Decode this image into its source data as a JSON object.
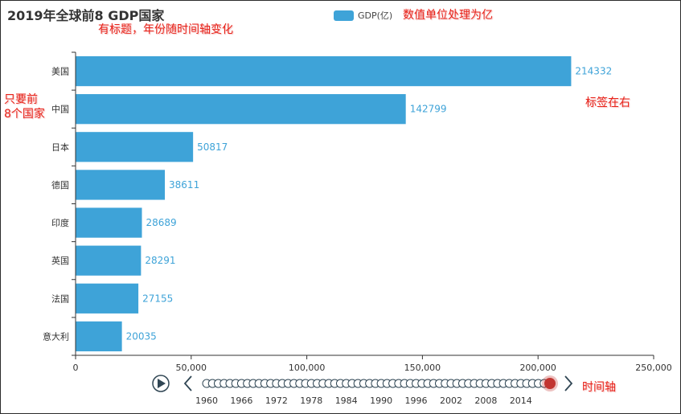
{
  "chart_data": {
    "type": "bar",
    "orientation": "horizontal",
    "title": "2019年全球前8 GDP国家",
    "categories": [
      "美国",
      "中国",
      "日本",
      "德国",
      "印度",
      "英国",
      "法国",
      "意大利"
    ],
    "series": [
      {
        "name": "GDP(亿)",
        "values": [
          214332,
          142799,
          50817,
          38611,
          28689,
          28291,
          27155,
          20035
        ]
      }
    ],
    "data_labels": [
      "214332",
      "142799",
      "50817",
      "38611",
      "28689",
      "28291",
      "27155",
      "20035"
    ],
    "xlim": [
      0,
      250000
    ],
    "x_ticks": [
      0,
      50000,
      100000,
      150000,
      200000,
      250000
    ],
    "x_tick_labels": [
      "0",
      "50,000",
      "100,000",
      "150,000",
      "200,000",
      "250,000"
    ],
    "legend_position": "top-center",
    "grid": false,
    "bar_color": "#3ea3d8",
    "label_position": "right"
  },
  "timeline": {
    "year_labels": [
      "1960",
      "1966",
      "1972",
      "1978",
      "1984",
      "1990",
      "1996",
      "2002",
      "2008",
      "2014"
    ],
    "point_count": 60,
    "current_year": 2019
  },
  "annotations": {
    "title_note": "有标题，年份随时间轴变化",
    "unit_note": "数值单位处理为亿",
    "top_note_line1": "只要前",
    "top_note_line2": "8个国家",
    "label_note": "标签在右",
    "timeline_note": "时间轴"
  },
  "colors": {
    "bar": "#3ea3d8",
    "timeline_active": "#c23531",
    "annotation": "#e8231a",
    "axis": "#333333"
  },
  "icons": {
    "play": "play-icon",
    "previous": "chevron-left-icon",
    "next": "chevron-right-icon"
  }
}
